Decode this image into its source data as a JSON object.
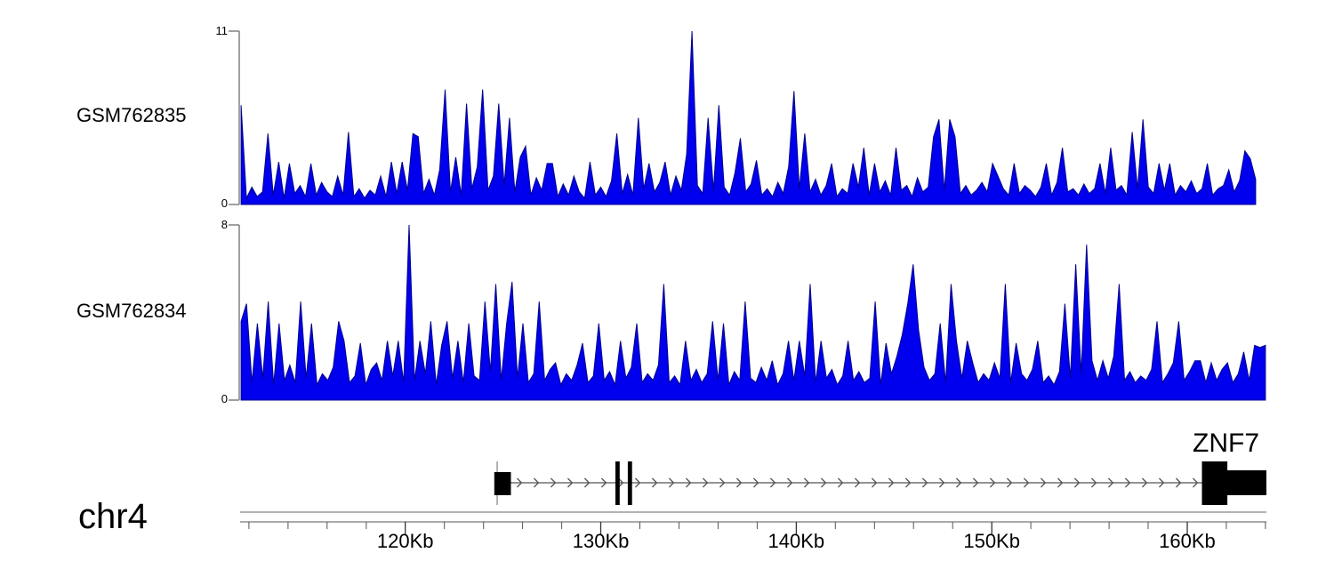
{
  "chromosome_label": "chr4",
  "chart_data": {
    "type": "area",
    "description": "Genome browser signal tracks with gene model and coordinate ruler",
    "signal_color": "#0000ee",
    "signal_edge_color": "#00008b",
    "x_axis": {
      "unit": "Kb",
      "range_kb": [
        111.55,
        164.05
      ],
      "major_ticks": [
        120,
        130,
        140,
        150,
        160
      ],
      "tick_labels": [
        "120Kb",
        "130Kb",
        "140Kb",
        "150Kb",
        "160Kb"
      ],
      "minor_step_kb": 2
    },
    "tracks": [
      {
        "label": "GSM762835",
        "ymax": 11,
        "ylim": [
          0,
          11
        ],
        "y_top_label": "11",
        "y_bottom_label": "0",
        "span_kb": [
          111.6,
          163.5
        ],
        "values": [
          6.3,
          0.4,
          1.1,
          0.5,
          0.8,
          4.5,
          0.6,
          2.7,
          0.4,
          2.6,
          0.7,
          1.2,
          0.5,
          2.6,
          0.6,
          1.4,
          0.8,
          0.5,
          1.8,
          0.6,
          4.6,
          0.5,
          1.0,
          0.4,
          0.9,
          0.6,
          1.8,
          0.5,
          2.7,
          0.7,
          2.7,
          0.9,
          4.5,
          4.3,
          0.7,
          1.6,
          0.6,
          2.2,
          7.3,
          0.8,
          3.0,
          0.6,
          6.4,
          1.0,
          2.4,
          7.3,
          0.9,
          1.8,
          6.4,
          1.2,
          5.5,
          0.8,
          3.0,
          3.7,
          0.6,
          1.7,
          0.9,
          2.6,
          2.6,
          0.5,
          1.3,
          0.6,
          1.8,
          0.8,
          0.4,
          2.7,
          0.6,
          1.1,
          0.5,
          1.5,
          4.5,
          0.7,
          1.9,
          0.6,
          5.5,
          1.0,
          2.6,
          0.8,
          1.4,
          2.7,
          0.6,
          1.8,
          0.9,
          3.2,
          11.0,
          1.2,
          0.7,
          5.5,
          0.9,
          6.3,
          1.1,
          0.6,
          2.0,
          4.2,
          0.8,
          1.3,
          2.8,
          0.6,
          1.0,
          0.5,
          1.4,
          0.7,
          2.4,
          7.2,
          1.0,
          4.5,
          0.8,
          1.6,
          0.6,
          1.2,
          2.6,
          0.5,
          1.0,
          0.7,
          2.6,
          1.1,
          3.6,
          0.6,
          2.6,
          0.8,
          1.5,
          0.6,
          3.6,
          0.9,
          1.2,
          0.5,
          1.7,
          0.8,
          1.1,
          4.3,
          5.4,
          0.9,
          5.4,
          4.3,
          0.7,
          1.2,
          0.6,
          0.9,
          1.4,
          0.8,
          2.6,
          1.8,
          1.0,
          0.6,
          2.6,
          0.7,
          1.2,
          0.9,
          0.5,
          1.1,
          2.6,
          0.6,
          1.4,
          3.6,
          0.8,
          1.0,
          0.6,
          1.3,
          0.7,
          1.0,
          2.6,
          0.7,
          3.6,
          0.9,
          1.2,
          0.6,
          4.6,
          1.0,
          5.4,
          1.1,
          0.7,
          2.6,
          0.9,
          2.6,
          0.6,
          1.2,
          0.8,
          1.5,
          0.7,
          1.0,
          2.6,
          0.6,
          1.0,
          1.2,
          2.2,
          0.8,
          1.5,
          3.4,
          2.9,
          1.6
        ]
      },
      {
        "label": "GSM762834",
        "ymax": 8,
        "ylim": [
          0,
          8
        ],
        "y_top_label": "8",
        "y_bottom_label": "0",
        "span_kb": [
          111.6,
          164.0
        ],
        "values": [
          3.6,
          4.4,
          0.8,
          3.5,
          1.0,
          4.5,
          0.7,
          3.5,
          0.9,
          1.6,
          0.8,
          4.5,
          1.0,
          3.5,
          0.7,
          1.2,
          0.9,
          1.5,
          3.6,
          2.7,
          0.8,
          1.1,
          2.6,
          0.7,
          1.4,
          1.7,
          0.9,
          2.7,
          1.1,
          2.7,
          0.8,
          8.0,
          0.9,
          2.7,
          1.2,
          3.6,
          0.7,
          2.5,
          3.6,
          1.0,
          2.7,
          0.8,
          3.5,
          1.1,
          0.9,
          4.5,
          1.3,
          5.3,
          0.9,
          3.5,
          5.4,
          1.0,
          3.5,
          0.8,
          1.2,
          4.5,
          0.9,
          1.4,
          1.7,
          0.7,
          1.2,
          0.9,
          1.6,
          2.6,
          0.8,
          1.1,
          3.5,
          0.9,
          1.3,
          0.7,
          2.7,
          1.0,
          1.5,
          3.5,
          0.8,
          1.2,
          0.9,
          1.6,
          5.3,
          0.8,
          1.1,
          0.7,
          2.7,
          0.9,
          1.4,
          0.8,
          1.2,
          3.6,
          0.9,
          3.5,
          0.7,
          1.3,
          0.9,
          4.5,
          1.0,
          0.8,
          1.5,
          0.9,
          1.8,
          0.7,
          1.2,
          2.7,
          0.9,
          2.7,
          1.1,
          5.3,
          0.8,
          2.7,
          1.0,
          1.4,
          0.7,
          1.1,
          2.7,
          0.9,
          1.3,
          0.8,
          1.0,
          4.5,
          0.7,
          2.6,
          1.2,
          2.0,
          3.0,
          4.4,
          6.2,
          3.2,
          1.5,
          0.9,
          1.2,
          3.5,
          0.8,
          5.3,
          2.7,
          1.0,
          2.7,
          1.7,
          0.8,
          1.2,
          0.9,
          1.7,
          1.0,
          5.3,
          0.8,
          2.6,
          1.2,
          0.9,
          1.4,
          2.7,
          0.8,
          1.1,
          0.7,
          1.3,
          4.4,
          1.0,
          6.2,
          1.2,
          7.1,
          1.8,
          0.9,
          1.8,
          1.0,
          2.0,
          5.3,
          0.9,
          1.3,
          0.8,
          1.1,
          0.9,
          1.4,
          3.6,
          0.8,
          1.2,
          1.7,
          3.6,
          0.9,
          1.3,
          1.8,
          1.8,
          0.8,
          1.7,
          0.9,
          1.4,
          1.7,
          0.8,
          1.2,
          2.2,
          0.9,
          2.5,
          2.4,
          2.5
        ]
      }
    ],
    "gene_track": {
      "name": "ZNF7",
      "strand": "+",
      "tss_kb": 124.7,
      "intron_span_kb": [
        125.4,
        160.75
      ],
      "exons": [
        {
          "start_kb": 124.55,
          "end_kb": 125.4,
          "kind": "medium"
        },
        {
          "start_kb": 130.75,
          "end_kb": 130.97,
          "kind": "tall"
        },
        {
          "start_kb": 131.38,
          "end_kb": 131.6,
          "kind": "tall"
        },
        {
          "start_kb": 160.75,
          "end_kb": 162.05,
          "kind": "tall"
        },
        {
          "start_kb": 162.05,
          "end_kb": 164.05,
          "kind": "utr"
        }
      ]
    }
  }
}
